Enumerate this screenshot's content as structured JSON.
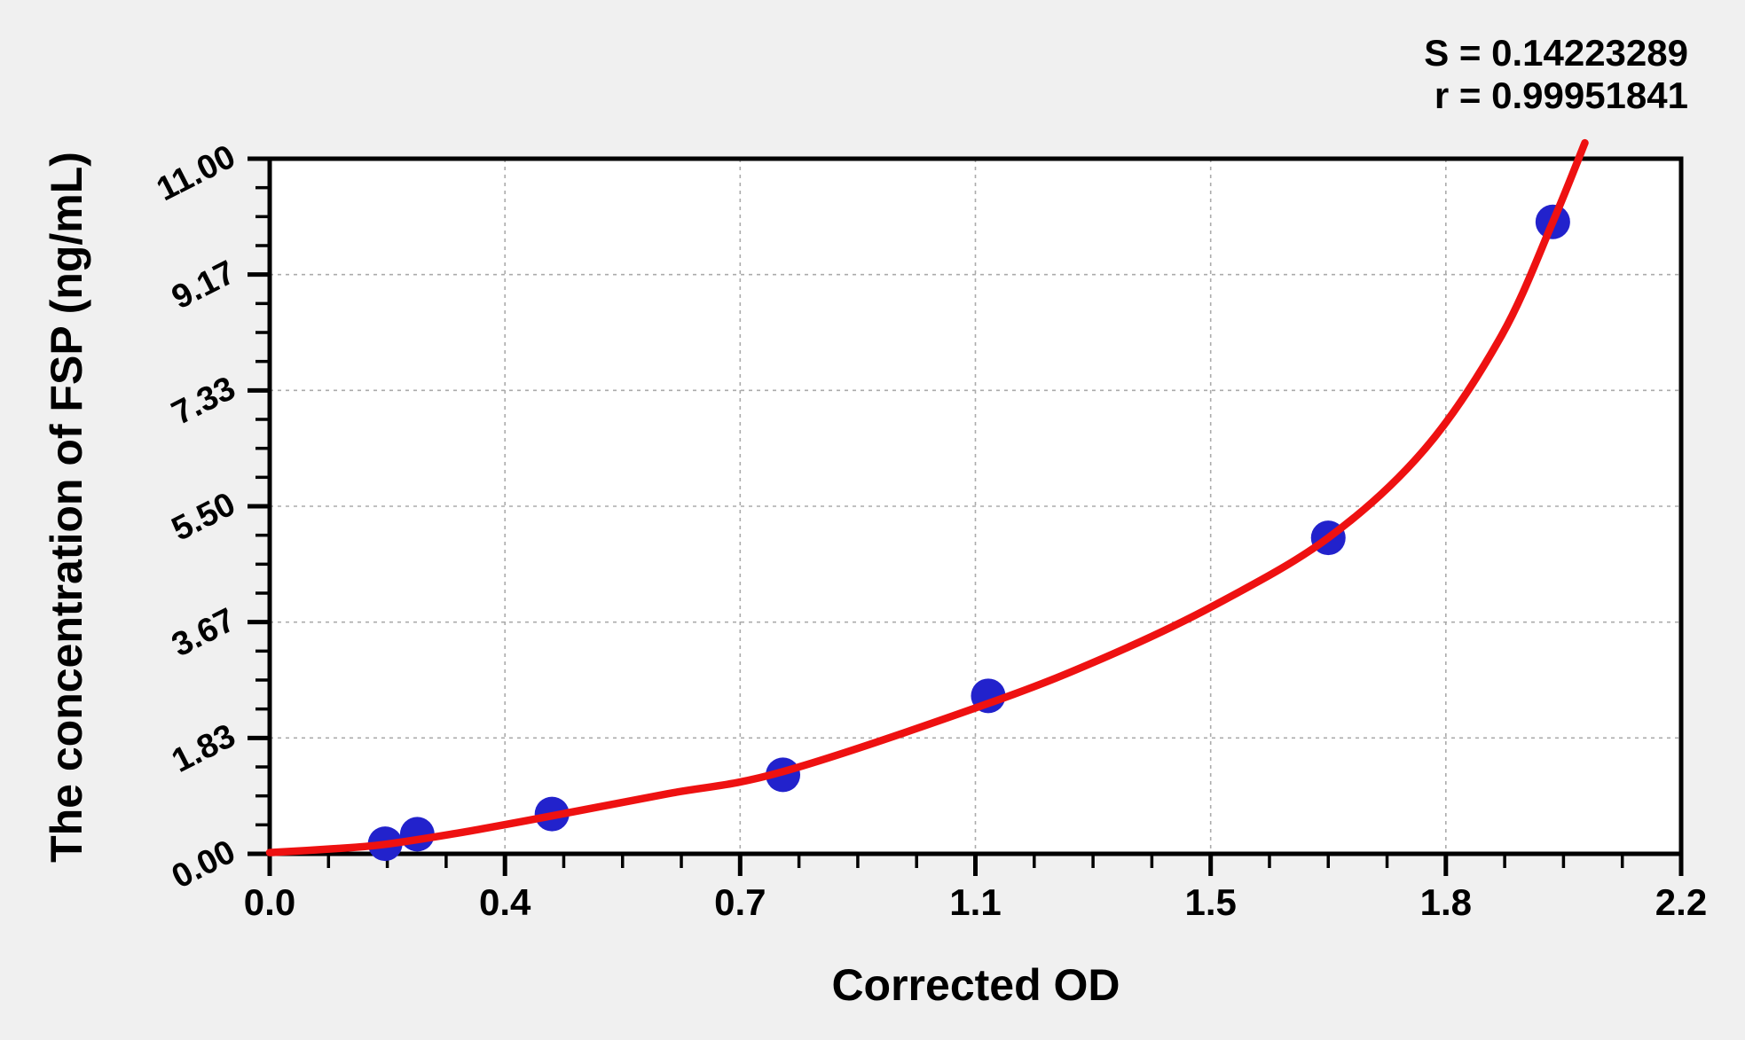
{
  "chart_data": {
    "type": "scatter",
    "title": "",
    "xlabel": "Corrected OD",
    "ylabel": "The concentration of FSP (ng/mL)",
    "annotations": [
      "S = 0.14223289",
      "r = 0.99951841"
    ],
    "legend": "none",
    "grid": "dashed major gridlines",
    "x_axis": {
      "min": 0,
      "max": 2.2,
      "tick_values": [
        0,
        0.3667,
        0.7333,
        1.1,
        1.4667,
        1.8333,
        2.2
      ],
      "tick_labels": [
        "0.0",
        "0.4",
        "0.7",
        "1.1",
        "1.5",
        "1.8",
        "2.2"
      ],
      "minor_ticks_per_interval": 3
    },
    "y_axis": {
      "min": 0,
      "max": 11,
      "tick_values": [
        0,
        1.8333,
        3.6667,
        5.5,
        7.3333,
        9.1667,
        11
      ],
      "tick_labels": [
        "0.00",
        "1.83",
        "3.67",
        "5.50",
        "7.33",
        "9.17",
        "11.00"
      ],
      "minor_ticks_per_interval": 3
    },
    "series": [
      {
        "name": "standard-points",
        "type": "scatter",
        "x": [
          0.18,
          0.23,
          0.44,
          0.8,
          1.12,
          1.65,
          2.0
        ],
        "y": [
          0.16,
          0.31,
          0.63,
          1.25,
          2.5,
          5.0,
          10.0
        ]
      },
      {
        "name": "fitted-curve",
        "type": "line",
        "x": [
          0,
          0.1,
          0.18,
          0.3,
          0.44,
          0.62,
          0.8,
          1.12,
          1.3,
          1.47,
          1.65,
          1.8,
          1.92,
          2.0,
          2.05
        ],
        "y": [
          0.02,
          0.08,
          0.15,
          0.34,
          0.6,
          0.95,
          1.3,
          2.38,
          3.1,
          3.92,
          5.0,
          6.4,
          8.2,
          10.0,
          11.25
        ]
      }
    ],
    "colors": {
      "point": "#2222cc",
      "curve": "#ee1111",
      "grid": "#ababab",
      "axis": "#000000",
      "plot_bg": "#ffffff",
      "page_bg": "#f0f0f0",
      "text": "#000000"
    }
  }
}
